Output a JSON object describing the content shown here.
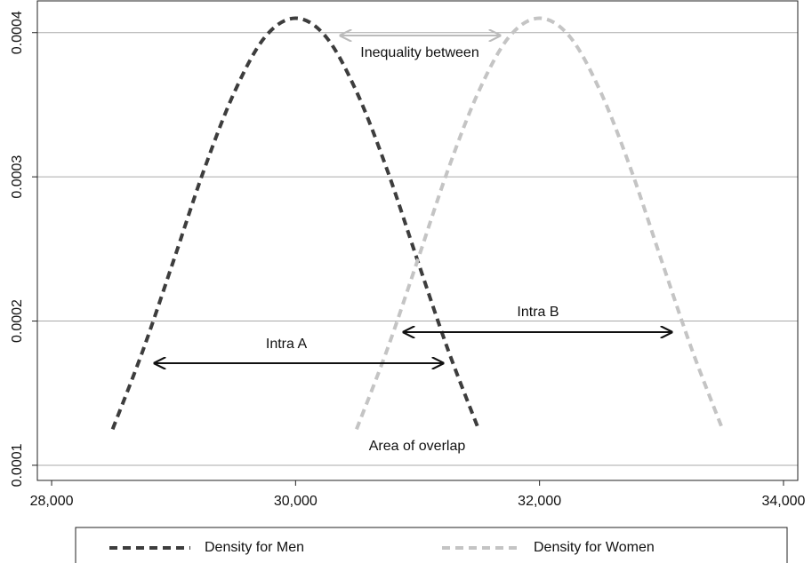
{
  "chart_data": {
    "type": "line",
    "x": [
      28500,
      28750,
      29000,
      29250,
      29500,
      29750,
      30000,
      30250,
      30500,
      30750,
      31000,
      31250,
      31500
    ],
    "series": [
      {
        "name": "Density for Men",
        "color": "#3d3d3d",
        "x": [
          28500,
          28750,
          29000,
          29250,
          29500,
          29750,
          30000,
          30250,
          30500,
          30750,
          31000,
          31250,
          31500
        ],
        "values": [
          0.000125,
          0.00018,
          0.000242,
          0.000305,
          0.000359,
          0.000397,
          0.00041,
          0.000397,
          0.000359,
          0.000305,
          0.000242,
          0.00018,
          0.000125
        ]
      },
      {
        "name": "Density for Women",
        "color": "#c4c4c4",
        "x": [
          30500,
          30750,
          31000,
          31250,
          31500,
          31750,
          32000,
          32250,
          32500,
          32750,
          33000,
          33250,
          33500
        ],
        "values": [
          0.000125,
          0.00018,
          0.000242,
          0.000305,
          0.000359,
          0.000397,
          0.00041,
          0.000397,
          0.000359,
          0.000305,
          0.000242,
          0.00018,
          0.000125
        ]
      }
    ],
    "annotations": [
      "Inequality between",
      "Intra A",
      "Intra B",
      "Area of overlap"
    ],
    "xlim": [
      27883,
      34117
    ],
    "xticks": [
      {
        "value": 28000,
        "label": "28,000"
      },
      {
        "value": 30000,
        "label": "30,000"
      },
      {
        "value": 32000,
        "label": "32,000"
      },
      {
        "value": 34000,
        "label": "34,000"
      }
    ],
    "ylim": [
      8.95e-05,
      0.000422
    ],
    "yticks": [
      0.0001,
      0.0002,
      0.0003,
      0.0004
    ],
    "grid": true,
    "legend": "bottom"
  }
}
